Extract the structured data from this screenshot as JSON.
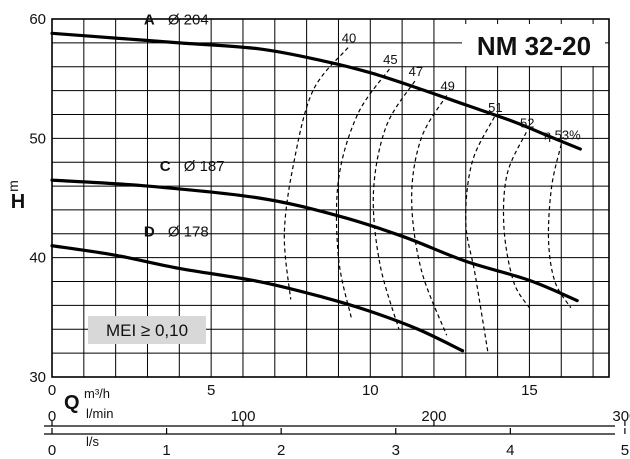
{
  "chart_data": {
    "type": "line",
    "title": "NM 32-20",
    "ylabel": "H",
    "yunit": "m",
    "xlabel": "Q",
    "xunit": "m³/h",
    "xlim": [
      0,
      17.5
    ],
    "ylim": [
      30,
      60
    ],
    "grid": true,
    "yticks": [
      30,
      40,
      50,
      60
    ],
    "xticks": [
      0,
      5,
      10,
      15
    ],
    "secondary_axes": [
      {
        "unit": "l/min",
        "ticks": [
          0,
          100,
          200,
          300
        ]
      },
      {
        "unit": "l/s",
        "ticks": [
          0,
          1,
          2,
          3,
          4,
          5
        ]
      }
    ],
    "series": [
      {
        "name": "A",
        "diameter_label": "Ø 204",
        "x": [
          0,
          2,
          4,
          6.5,
          8.5,
          10,
          11.5,
          13,
          14.5,
          15.5,
          16.6
        ],
        "y": [
          58.8,
          58.4,
          58.0,
          57.5,
          56.5,
          55.5,
          54.2,
          52.8,
          51.4,
          50.3,
          49.1
        ]
      },
      {
        "name": "C",
        "diameter_label": "Ø 187",
        "x": [
          0,
          3,
          6.5,
          9,
          11,
          13,
          15,
          16.5
        ],
        "y": [
          46.5,
          46.0,
          45.0,
          43.5,
          41.8,
          39.7,
          38.1,
          36.4
        ]
      },
      {
        "name": "D",
        "diameter_label": "Ø 178",
        "x": [
          0,
          2,
          4,
          6.5,
          8.5,
          10,
          11.5,
          12.9
        ],
        "y": [
          41.0,
          40.2,
          39.1,
          38.0,
          36.7,
          35.5,
          34.0,
          32.2
        ]
      }
    ],
    "efficiency_lines": [
      {
        "label": "40",
        "x": [
          9.3,
          8.2,
          7.6,
          7.3,
          7.5
        ],
        "y": [
          57.6,
          54.0,
          48.0,
          42.0,
          36.5
        ]
      },
      {
        "label": "45",
        "x": [
          10.6,
          9.6,
          9.0,
          9.0,
          9.4
        ],
        "y": [
          55.8,
          52.0,
          46.5,
          40.0,
          35.0
        ]
      },
      {
        "label": "47",
        "x": [
          11.4,
          10.5,
          10.1,
          10.3,
          10.9
        ],
        "y": [
          54.8,
          51.0,
          45.5,
          39.5,
          34.0
        ]
      },
      {
        "label": "49",
        "x": [
          12.4,
          11.6,
          11.3,
          11.6,
          12.4
        ],
        "y": [
          53.6,
          50.0,
          45.0,
          39.0,
          33.5
        ]
      },
      {
        "label": "51",
        "x": [
          13.9,
          13.2,
          13.0,
          13.3,
          13.7
        ],
        "y": [
          51.8,
          48.0,
          43.0,
          38.5,
          32.0
        ]
      },
      {
        "label": "52",
        "x": [
          14.9,
          14.3,
          14.2,
          14.5,
          15.0
        ],
        "y": [
          50.5,
          47.0,
          42.5,
          38.0,
          35.8
        ]
      },
      {
        "label": "η 53%",
        "x": [
          16.0,
          15.7,
          15.6,
          15.8,
          16.3
        ],
        "y": [
          49.5,
          46.0,
          41.5,
          38.0,
          35.8
        ]
      }
    ],
    "annotations": [
      "MEI ≥ 0,10"
    ]
  }
}
